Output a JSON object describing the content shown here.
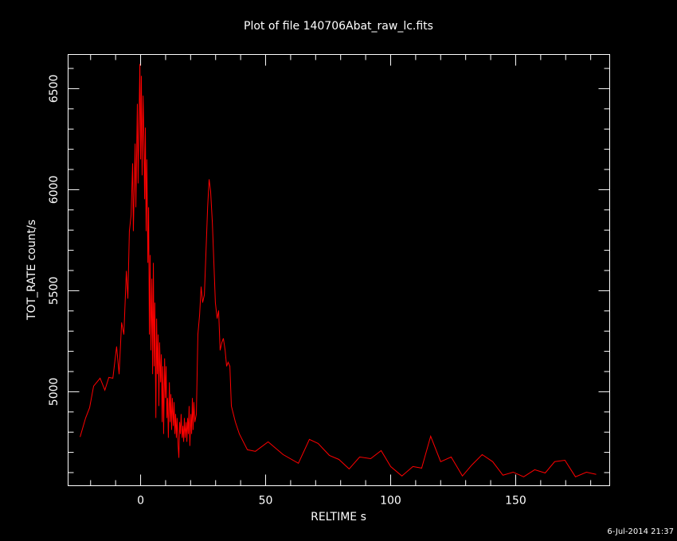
{
  "chart_data": {
    "type": "line",
    "title": "Plot of file 140706Abat_raw_lc.fits",
    "x_label": "RELTIME  s",
    "y_label": "TOT_RATE  count/s",
    "footer": "6-Jul-2014 21:37",
    "xlim": [
      -29,
      187.6
    ],
    "ylim": [
      4535,
      6669
    ],
    "xticks": [
      0,
      50,
      100,
      150
    ],
    "yticks": [
      5000,
      5500,
      6000,
      6500
    ],
    "xminorticks": [
      -20,
      -10,
      10,
      20,
      30,
      40,
      60,
      70,
      80,
      90,
      110,
      120,
      130,
      140,
      160,
      170,
      180
    ],
    "yminorticks": [
      4600,
      4700,
      4800,
      4900,
      5100,
      5200,
      5300,
      5400,
      5600,
      5700,
      5800,
      5900,
      6100,
      6200,
      6300,
      6400,
      6600
    ],
    "series": [
      {
        "name": "TOT_RATE",
        "color": "#ff0000",
        "x": [
          -24.2,
          -22,
          -20.4,
          -18.8,
          -16.2,
          -14.3,
          -12.7,
          -11.1,
          -9.6,
          -8.6,
          -7.6,
          -6.7,
          -5.7,
          -5.1,
          -4.5,
          -3.8,
          -3.2,
          -2.9,
          -2.2,
          -1.9,
          -1.3,
          -1,
          -0.3,
          0,
          0.3,
          0.6,
          1,
          1.3,
          1.6,
          1.9,
          2.2,
          2.5,
          2.9,
          3.2,
          3.5,
          3.8,
          4.1,
          4.5,
          4.8,
          5.1,
          5.4,
          5.7,
          6.1,
          6.4,
          6.7,
          7,
          7.3,
          7.6,
          8,
          8.3,
          8.6,
          8.9,
          9.2,
          9.6,
          9.9,
          10.2,
          10.5,
          10.8,
          11.1,
          11.5,
          11.8,
          12.1,
          12.4,
          12.7,
          13.1,
          13.4,
          13.7,
          14,
          14.3,
          14.6,
          15,
          15.3,
          15.6,
          15.9,
          16.2,
          16.6,
          16.9,
          17.2,
          17.5,
          17.8,
          18.2,
          18.5,
          18.8,
          19.1,
          19.4,
          19.7,
          20.1,
          20.4,
          20.7,
          21,
          21.3,
          21.7,
          22.3,
          22.9,
          23.6,
          24.2,
          24.8,
          25.5,
          26.1,
          26.8,
          27.4,
          28,
          28.7,
          29.3,
          29.9,
          30.6,
          31.2,
          31.8,
          32.5,
          33.1,
          33.8,
          34.4,
          35,
          35.7,
          36.3,
          37.9,
          39.5,
          42.7,
          45.9,
          51,
          57,
          63.1,
          67.5,
          71,
          75.5,
          79.3,
          83.4,
          87.6,
          92,
          96.2,
          100,
          104.5,
          108.9,
          112.4,
          116,
          120,
          124.2,
          128.7,
          132.5,
          136.6,
          140.8,
          144.9,
          149,
          153.2,
          157.6,
          161.8,
          165.6,
          169.7,
          173.9,
          178.3,
          182.2
        ],
        "values": [
          4776,
          4870,
          4921,
          5028,
          5067,
          5008,
          5071,
          5067,
          5224,
          5087,
          5343,
          5283,
          5598,
          5461,
          5795,
          5874,
          6130,
          5795,
          6228,
          5913,
          6425,
          6031,
          6622,
          6150,
          6563,
          6071,
          6465,
          6268,
          5953,
          6307,
          5795,
          6150,
          5638,
          5913,
          5283,
          5677,
          5205,
          5559,
          5087,
          5638,
          5126,
          5441,
          4870,
          5362,
          5087,
          5283,
          4929,
          5244,
          5047,
          5185,
          4850,
          5126,
          4791,
          5165,
          4969,
          5126,
          4870,
          4969,
          4772,
          5047,
          4850,
          4988,
          4811,
          4969,
          4831,
          4949,
          4791,
          4890,
          4772,
          4870,
          4732,
          4673,
          4850,
          4791,
          4890,
          4772,
          4831,
          4752,
          4870,
          4772,
          4850,
          4752,
          4870,
          4791,
          4929,
          4732,
          4890,
          4791,
          4969,
          4811,
          4949,
          4850,
          4890,
          5283,
          5382,
          5520,
          5441,
          5480,
          5677,
          5913,
          6051,
          5992,
          5835,
          5638,
          5441,
          5362,
          5402,
          5205,
          5244,
          5264,
          5205,
          5126,
          5146,
          5126,
          4929,
          4850,
          4791,
          4713,
          4705,
          4752,
          4689,
          4646,
          4764,
          4744,
          4685,
          4665,
          4618,
          4677,
          4669,
          4709,
          4630,
          4583,
          4630,
          4622,
          4780,
          4654,
          4677,
          4583,
          4638,
          4689,
          4654,
          4587,
          4602,
          4579,
          4614,
          4598,
          4654,
          4661,
          4579,
          4602,
          4591
        ]
      }
    ]
  }
}
